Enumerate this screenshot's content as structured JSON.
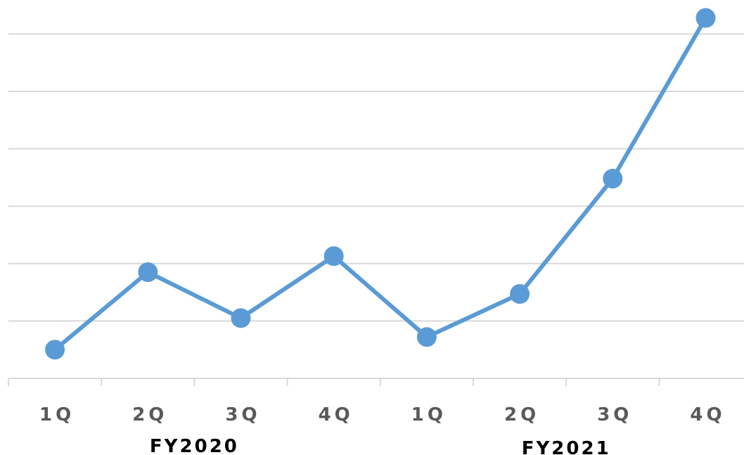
{
  "chart_data": {
    "type": "line",
    "categories": [
      "1Q",
      "2Q",
      "3Q",
      "4Q",
      "1Q",
      "2Q",
      "3Q",
      "4Q"
    ],
    "groups": [
      {
        "label": "FY2020",
        "categories": [
          "1Q",
          "2Q",
          "3Q",
          "4Q"
        ]
      },
      {
        "label": "FY2021",
        "categories": [
          "1Q",
          "2Q",
          "3Q",
          "4Q"
        ]
      }
    ],
    "series": [
      {
        "values": [
          0.5,
          1.85,
          1.05,
          2.13,
          0.72,
          1.47,
          3.48,
          6.28
        ]
      }
    ],
    "ylim": [
      0,
      6.6
    ],
    "gridlines": [
      1,
      2,
      3,
      4,
      5,
      6
    ],
    "grid": true,
    "y_tick_labels_shown": false,
    "title": "",
    "xlabel": "",
    "ylabel": "",
    "colors": {
      "line": "#5b9bd5",
      "marker": "#5b9bd5",
      "grid": "#d9d9d9",
      "tick_label": "#595959",
      "group_label": "#000000"
    }
  }
}
